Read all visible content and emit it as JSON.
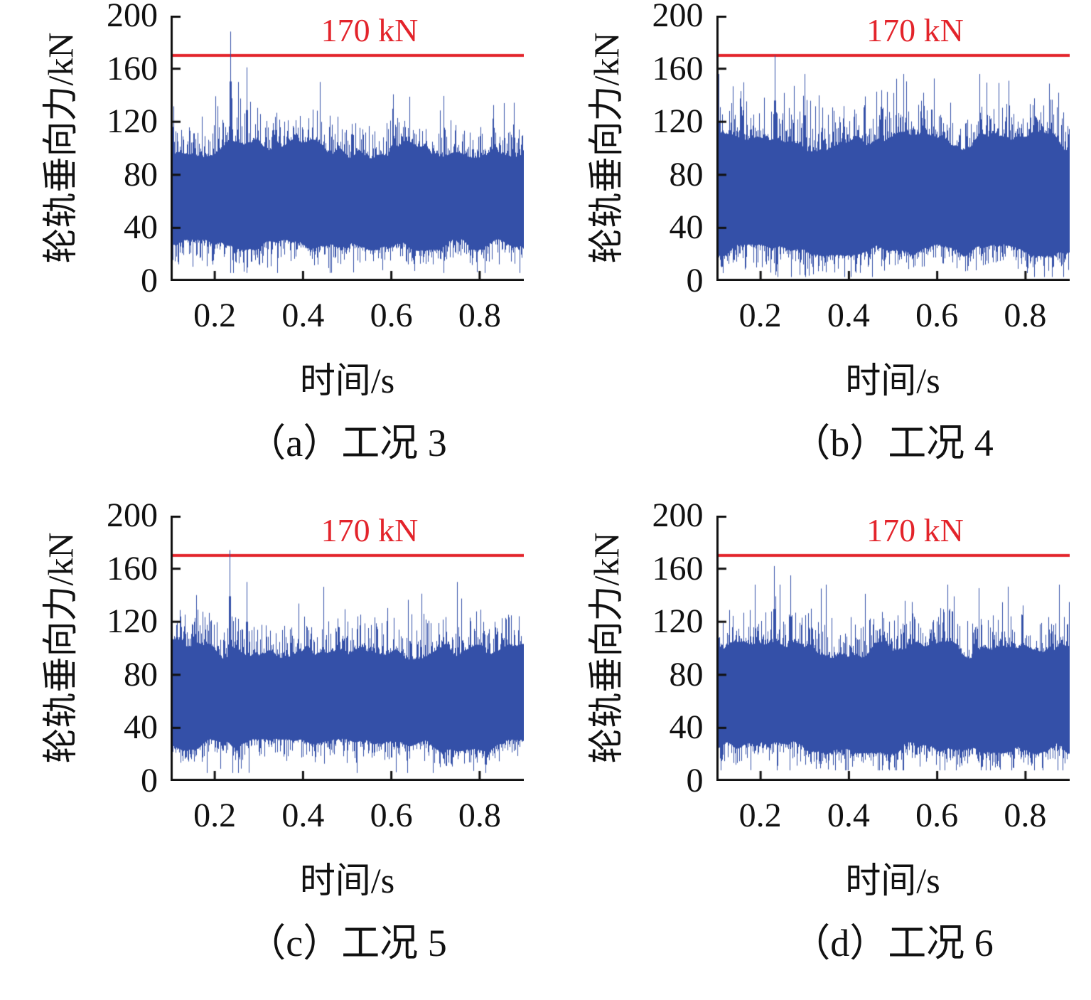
{
  "figure": {
    "background": "#ffffff",
    "axis_color": "#111111",
    "text_color": "#111111"
  },
  "chart_data": [
    {
      "id": "a",
      "type": "line",
      "caption": "（a）工况 3",
      "xlabel": "时间/s",
      "ylabel": "轮轨垂向力/kN",
      "x_range": [
        0.1,
        0.9
      ],
      "ylim": [
        0,
        200
      ],
      "yticks": [
        0,
        40,
        80,
        120,
        160,
        200
      ],
      "xticks": [
        0.2,
        0.4,
        0.6,
        0.8
      ],
      "grid": false,
      "legend": "none",
      "threshold": {
        "value": 170,
        "label": "170 kN",
        "color": "#e3242b"
      },
      "series": [
        {
          "name": "轮轨垂向力",
          "color": "#3450a8",
          "description": "高频随机轮轨垂向力时程；主体带约25-110 kN，包络峰约120-150 kN",
          "typical_band_kN": [
            25,
            110
          ],
          "mean_kN": 70,
          "max_spike": {
            "t": 0.235,
            "value": 188
          },
          "secondary_spike": {
            "t": 0.272,
            "value": 161
          },
          "min_kN": 6,
          "render": {
            "seed": 1013,
            "hi_base": 92,
            "tall_prob": 0.05,
            "hi_cap": 150,
            "lo_base": 32
          }
        }
      ]
    },
    {
      "id": "b",
      "type": "line",
      "caption": "（b）工况 4",
      "xlabel": "时间/s",
      "ylabel": "轮轨垂向力/kN",
      "x_range": [
        0.1,
        0.9
      ],
      "ylim": [
        0,
        200
      ],
      "yticks": [
        0,
        40,
        80,
        120,
        160,
        200
      ],
      "xticks": [
        0.2,
        0.4,
        0.6,
        0.8
      ],
      "grid": false,
      "legend": "none",
      "threshold": {
        "value": 170,
        "label": "170 kN",
        "color": "#e3242b"
      },
      "series": [
        {
          "name": "轮轨垂向力",
          "color": "#3450a8",
          "description": "高频随机轮轨垂向力时程；主体带约20-120 kN，包络峰约130-155 kN，最大尖峰恰达170 kN限值",
          "typical_band_kN": [
            20,
            120
          ],
          "mean_kN": 72,
          "max_spike": {
            "t": 0.232,
            "value": 170
          },
          "secondary_spike": {
            "t": 0.3,
            "value": 156
          },
          "min_kN": 3,
          "render": {
            "seed": 2024,
            "hi_base": 97,
            "tall_prob": 0.09,
            "hi_cap": 156,
            "lo_base": 28
          }
        }
      ]
    },
    {
      "id": "c",
      "type": "line",
      "caption": "（c）工况 5",
      "xlabel": "时间/s",
      "ylabel": "轮轨垂向力/kN",
      "x_range": [
        0.1,
        0.9
      ],
      "ylim": [
        0,
        200
      ],
      "yticks": [
        0,
        40,
        80,
        120,
        160,
        200
      ],
      "xticks": [
        0.2,
        0.4,
        0.6,
        0.8
      ],
      "grid": false,
      "legend": "none",
      "threshold": {
        "value": 170,
        "label": "170 kN",
        "color": "#e3242b"
      },
      "series": [
        {
          "name": "轮轨垂向力",
          "color": "#3450a8",
          "description": "高频随机轮轨垂向力时程；主体带约25-110 kN，最大尖峰约174 kN略超限值",
          "typical_band_kN": [
            25,
            110
          ],
          "mean_kN": 70,
          "max_spike": {
            "t": 0.233,
            "value": 174
          },
          "secondary_spike": {
            "t": 0.272,
            "value": 150
          },
          "min_kN": 6,
          "render": {
            "seed": 3035,
            "hi_base": 91,
            "tall_prob": 0.05,
            "hi_cap": 150,
            "lo_base": 32
          }
        }
      ]
    },
    {
      "id": "d",
      "type": "line",
      "caption": "（d）工况 6",
      "xlabel": "时间/s",
      "ylabel": "轮轨垂向力/kN",
      "x_range": [
        0.1,
        0.9
      ],
      "ylim": [
        0,
        200
      ],
      "yticks": [
        0,
        40,
        80,
        120,
        160,
        200
      ],
      "xticks": [
        0.2,
        0.4,
        0.6,
        0.8
      ],
      "grid": false,
      "legend": "none",
      "threshold": {
        "value": 170,
        "label": "170 kN",
        "color": "#e3242b"
      },
      "series": [
        {
          "name": "轮轨垂向力",
          "color": "#3450a8",
          "description": "高频随机轮轨垂向力时程；主体带约25-110 kN，最大尖峰约162 kN未超限值",
          "typical_band_kN": [
            25,
            110
          ],
          "mean_kN": 68,
          "max_spike": {
            "t": 0.23,
            "value": 162
          },
          "secondary_spike": {
            "t": 0.268,
            "value": 155
          },
          "min_kN": 8,
          "render": {
            "seed": 4046,
            "hi_base": 90,
            "tall_prob": 0.06,
            "hi_cap": 148,
            "lo_base": 30
          }
        }
      ]
    }
  ]
}
